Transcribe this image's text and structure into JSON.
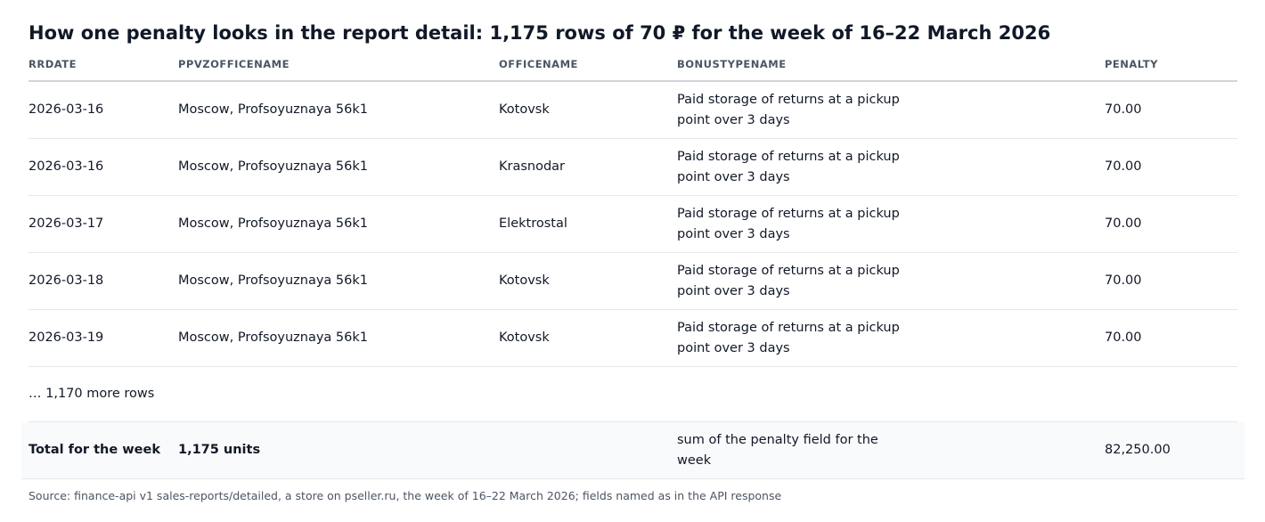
{
  "title": "How one penalty looks in the report detail: 1,175 rows of 70 ₽ for the week of 16–22 March 2026",
  "table": {
    "columns": [
      "RRDATE",
      "PPVZOFFICENAME",
      "OFFICENAME",
      "BONUSTYPENAME",
      "PENALTY"
    ],
    "rows": [
      {
        "rrdate": "2026-03-16",
        "ppvzofficename": "Moscow, Profsoyuznaya 56k1",
        "officename": "Kotovsk",
        "bonustypename": "Paid storage of returns at a pickup point over 3 days",
        "penalty": "70.00"
      },
      {
        "rrdate": "2026-03-16",
        "ppvzofficename": "Moscow, Profsoyuznaya 56k1",
        "officename": "Krasnodar",
        "bonustypename": "Paid storage of returns at a pickup point over 3 days",
        "penalty": "70.00"
      },
      {
        "rrdate": "2026-03-17",
        "ppvzofficename": "Moscow, Profsoyuznaya 56k1",
        "officename": "Elektrostal",
        "bonustypename": "Paid storage of returns at a pickup point over 3 days",
        "penalty": "70.00"
      },
      {
        "rrdate": "2026-03-18",
        "ppvzofficename": "Moscow, Profsoyuznaya 56k1",
        "officename": "Kotovsk",
        "bonustypename": "Paid storage of returns at a pickup point over 3 days",
        "penalty": "70.00"
      },
      {
        "rrdate": "2026-03-19",
        "ppvzofficename": "Moscow, Profsoyuznaya 56k1",
        "officename": "Kotovsk",
        "bonustypename": "Paid storage of returns at a pickup point over 3 days",
        "penalty": "70.00"
      }
    ],
    "more_rows": "… 1,170 more rows",
    "total": {
      "label": "Total for the week",
      "units": "1,175 units",
      "note": "sum of the penalty field for the week",
      "value": "82,250.00"
    }
  },
  "footnote": "Source: finance-api v1 sales-reports/detailed, a store on pseller.ru, the week of 16–22 March 2026; fields named as in the API response"
}
